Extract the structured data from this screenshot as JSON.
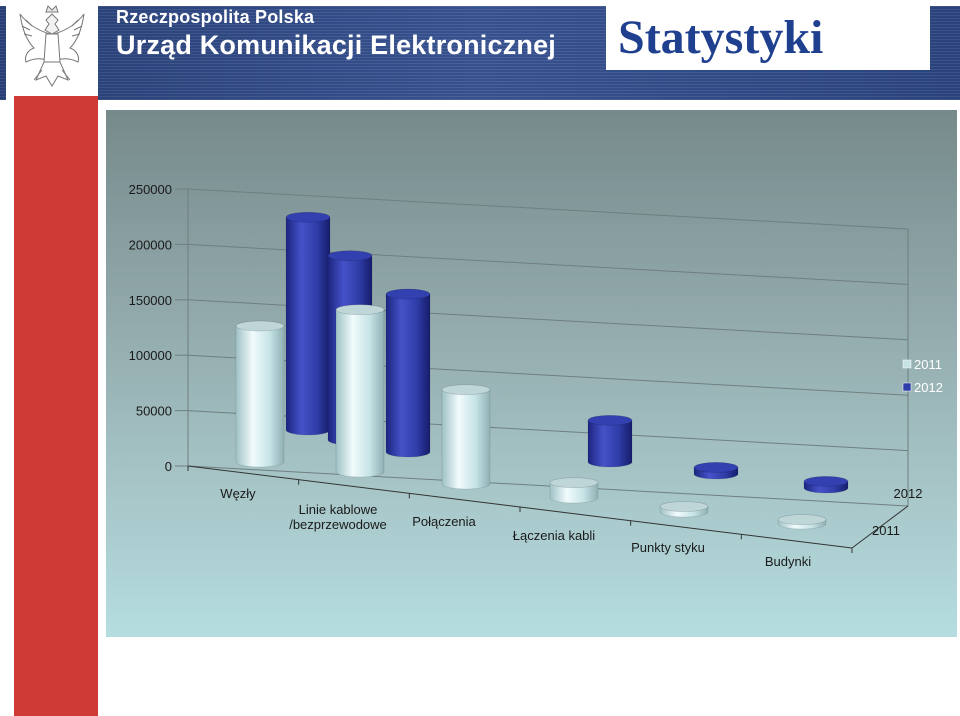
{
  "header": {
    "org_subtitle": "Rzeczpospolita Polska",
    "org_name": "Urząd Komunikacji Elektronicznej",
    "page_title": "Statystyki"
  },
  "colors": {
    "header_bg": "#2e4a8a",
    "side_strip": "#cf3a36",
    "title_text": "#1f3f8f",
    "series_2011": "#c6e3e6",
    "series_2012": "#2f3da8"
  },
  "chart_data": {
    "type": "bar",
    "style": "3d-cylinder",
    "title": "",
    "xlabel": "",
    "ylabel": "",
    "categories": [
      "Węzły",
      "Linie kablowe /bezprzewodowe",
      "Połączenia",
      "Łączenia kabli",
      "Punkty styku",
      "Budynki"
    ],
    "category_lines": [
      [
        "Węzły"
      ],
      [
        "Linie kablowe",
        "/bezprzewodowe"
      ],
      [
        "Połączenia"
      ],
      [
        "Łączenia kabli"
      ],
      [
        "Punkty styku"
      ],
      [
        "Budynki"
      ]
    ],
    "depth_labels": [
      "2012",
      "2011"
    ],
    "series": [
      {
        "name": "2011",
        "values": [
          124000,
          148000,
          86000,
          14000,
          5000,
          4000
        ]
      },
      {
        "name": "2012",
        "values": [
          194000,
          168000,
          144000,
          38000,
          6000,
          6000
        ]
      }
    ],
    "ylim": [
      0,
      250000
    ],
    "yticks": [
      "0",
      "50000",
      "100000",
      "150000",
      "200000",
      "250000"
    ],
    "grid": true,
    "legend": "right"
  }
}
